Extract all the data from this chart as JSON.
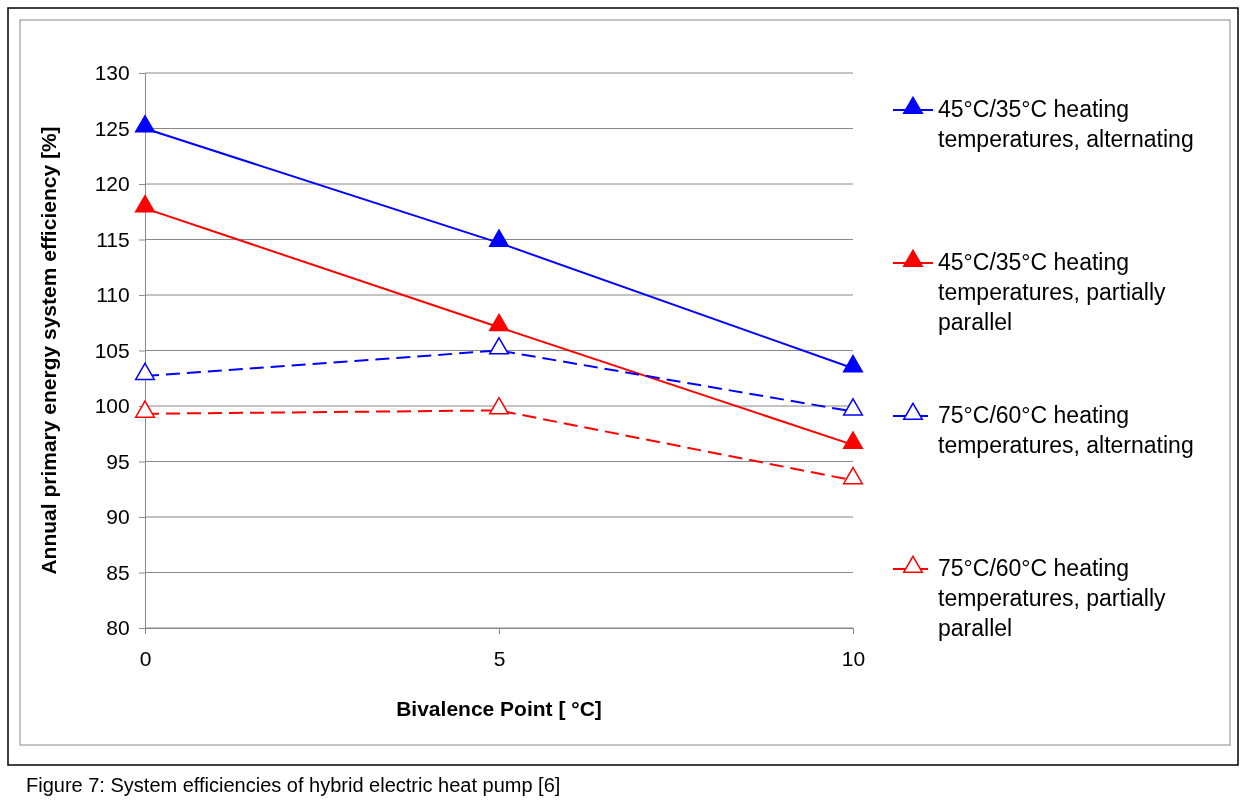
{
  "chart_data": {
    "type": "line",
    "xlabel": "Bivalence Point [ °C]",
    "ylabel": "Annual primary energy system efficiency  [%]",
    "x": [
      0,
      5,
      10
    ],
    "xlim": [
      0,
      10
    ],
    "xticks": [
      0,
      5,
      10
    ],
    "ylim": [
      80,
      130
    ],
    "yticks": [
      80,
      85,
      90,
      95,
      100,
      105,
      110,
      115,
      120,
      125,
      130
    ],
    "grid": "y",
    "legend": "right",
    "marker": "triangle",
    "series": [
      {
        "name": "45°C/35°C heating temperatures, alternating",
        "color": "#0000ff",
        "values": [
          125.0,
          114.7,
          103.4
        ],
        "line_style": "solid"
      },
      {
        "name": "45°C/35°C heating temperatures, partially parallel",
        "color": "#ff0000",
        "values": [
          117.8,
          107.1,
          96.5
        ],
        "line_style": "solid"
      },
      {
        "name": "75°C/60°C heating temperatures, alternating",
        "color": "#0000ff",
        "values": [
          102.7,
          105.0,
          99.5
        ],
        "line_style": "dashed"
      },
      {
        "name": "75°C/60°C heating temperatures, partially parallel",
        "color": "#ff0000",
        "values": [
          99.3,
          99.6,
          93.3
        ],
        "line_style": "dashed"
      }
    ],
    "annotations": [
      "Figure 7: System efficiencies of hybrid electric heat pump [6]"
    ]
  }
}
